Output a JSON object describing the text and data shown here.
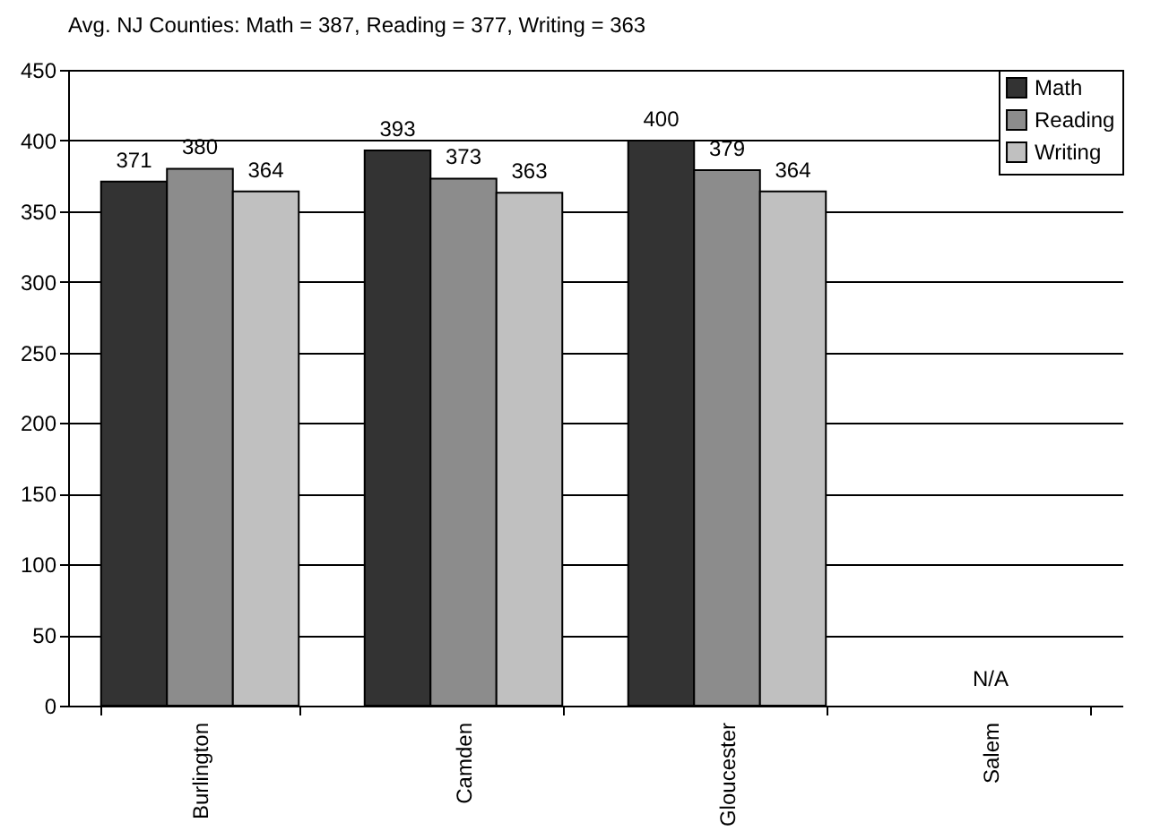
{
  "chart_data": {
    "type": "bar",
    "title": "Avg. NJ Counties: Math = 387, Reading = 377, Writing = 363",
    "categories": [
      "Burlington",
      "Camden",
      "Gloucester",
      "Salem"
    ],
    "series": [
      {
        "name": "Math",
        "color": "#333333",
        "values": [
          371,
          393,
          400,
          null
        ]
      },
      {
        "name": "Reading",
        "color": "#8c8c8c",
        "values": [
          380,
          373,
          379,
          null
        ]
      },
      {
        "name": "Writing",
        "color": "#c0c0c0",
        "values": [
          364,
          363,
          364,
          null
        ]
      }
    ],
    "ylim": [
      0,
      450
    ],
    "yticks": [
      0,
      50,
      100,
      150,
      200,
      250,
      300,
      350,
      400,
      450
    ],
    "grid": "y",
    "legend": "top right",
    "data_labels": true,
    "annotations": [
      "N/A"
    ]
  }
}
